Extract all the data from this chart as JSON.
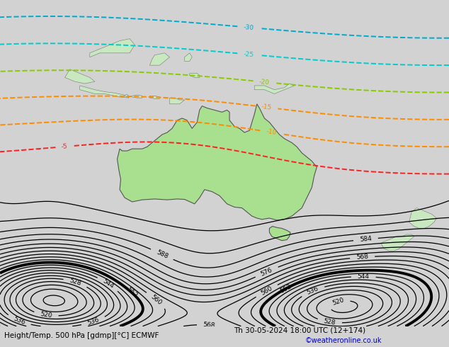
{
  "title_left": "Height/Temp. 500 hPa [gdmp][°C] ECMWF",
  "title_right": "Th 30-05-2024 18:00 UTC (12+174)",
  "credit": "©weatheronline.co.uk",
  "background_color": "#d2d2d2",
  "land_color": "#c8e8c0",
  "australia_fill": "#a8e090",
  "figsize": [
    6.34,
    4.9
  ],
  "dpi": 100,
  "xlim": [
    90,
    180
  ],
  "ylim": [
    -65,
    15
  ],
  "height_levels": [
    512,
    516,
    520,
    524,
    528,
    532,
    536,
    540,
    544,
    548,
    552,
    556,
    560,
    564,
    568,
    572,
    576,
    580,
    584,
    588,
    592,
    596
  ],
  "height_label_levels": [
    520,
    528,
    536,
    544,
    552,
    560,
    568,
    576,
    584,
    588
  ],
  "thick_level": 552,
  "temp_levels": [
    -5,
    -10,
    -15,
    -20,
    -25,
    -30
  ],
  "temp_colors": [
    "#ff2020",
    "#ff8c00",
    "#ff8c00",
    "#88cc00",
    "#00cccc",
    "#00aacc"
  ],
  "height_line_color": "#000000",
  "height_label_color": "#000000"
}
